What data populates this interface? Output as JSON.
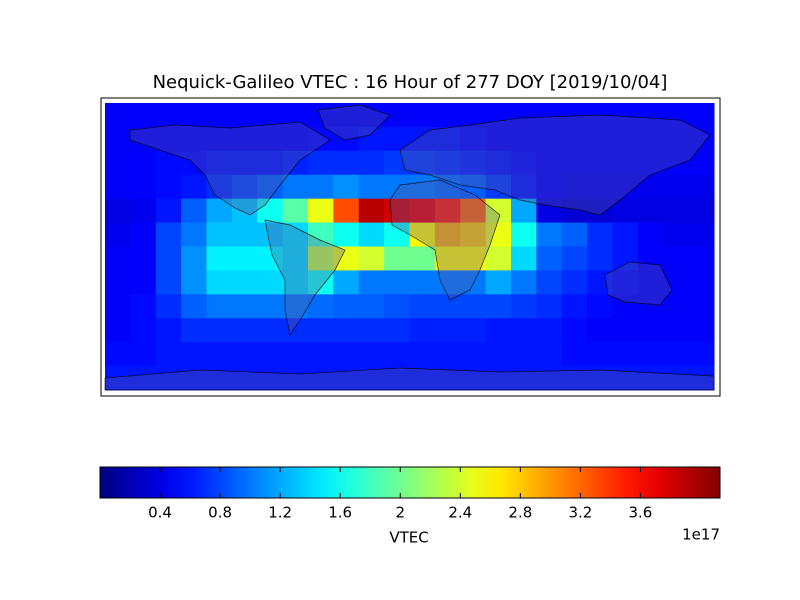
{
  "chart_data": {
    "type": "heatmap",
    "title": "Nequick-Galileo VTEC : 16 Hour of 277 DOY [2019/10/04]",
    "colorbar_label": "VTEC",
    "colorbar_offset": "1e17",
    "colormap": "jet",
    "clim": [
      0,
      4.13
    ],
    "cticks": [
      0.4,
      0.8,
      1.2,
      1.6,
      2.0,
      2.4,
      2.8,
      3.2,
      3.6
    ],
    "z": [
      [
        0.5,
        0.5,
        0.5,
        0.5,
        0.5,
        0.5,
        0.5,
        0.5,
        0.5,
        0.5,
        0.5,
        0.5,
        0.5,
        0.5,
        0.5,
        0.5,
        0.5,
        0.5,
        0.5,
        0.5,
        0.5,
        0.5,
        0.5,
        0.5
      ],
      [
        0.5,
        0.5,
        0.5,
        0.5,
        0.5,
        0.5,
        0.5,
        0.5,
        0.55,
        0.55,
        0.6,
        0.6,
        0.6,
        0.6,
        0.55,
        0.5,
        0.5,
        0.5,
        0.5,
        0.5,
        0.5,
        0.5,
        0.5,
        0.5
      ],
      [
        0.5,
        0.5,
        0.55,
        0.55,
        0.6,
        0.6,
        0.6,
        0.65,
        0.7,
        0.7,
        0.7,
        0.75,
        0.75,
        0.7,
        0.65,
        0.6,
        0.55,
        0.5,
        0.5,
        0.5,
        0.5,
        0.5,
        0.5,
        0.5
      ],
      [
        0.5,
        0.5,
        0.55,
        0.6,
        0.7,
        0.8,
        0.9,
        1.0,
        1.0,
        1.1,
        1.0,
        1.0,
        1.0,
        0.95,
        0.9,
        0.75,
        0.6,
        0.5,
        0.45,
        0.45,
        0.45,
        0.45,
        0.45,
        0.45
      ],
      [
        0.4,
        0.45,
        0.6,
        0.9,
        1.2,
        1.3,
        1.6,
        1.9,
        2.5,
        3.3,
        3.9,
        3.8,
        3.7,
        3.5,
        3.2,
        2.4,
        1.2,
        0.4,
        0.35,
        0.35,
        0.4,
        0.4,
        0.4,
        0.4
      ],
      [
        0.45,
        0.5,
        0.8,
        1.0,
        1.3,
        1.3,
        1.3,
        1.4,
        1.8,
        1.6,
        1.4,
        1.6,
        2.6,
        2.9,
        2.8,
        2.5,
        1.6,
        1.0,
        0.9,
        0.7,
        0.6,
        0.5,
        0.45,
        0.45
      ],
      [
        0.5,
        0.5,
        0.8,
        1.1,
        1.5,
        1.5,
        1.5,
        1.4,
        2.3,
        2.5,
        2.4,
        2.0,
        2.0,
        2.6,
        2.6,
        2.4,
        1.4,
        0.9,
        0.8,
        0.7,
        0.6,
        0.5,
        0.5,
        0.5
      ],
      [
        0.5,
        0.5,
        0.8,
        1.1,
        1.4,
        1.4,
        1.4,
        1.4,
        1.6,
        1.2,
        1.0,
        1.0,
        1.0,
        1.0,
        1.0,
        1.2,
        1.0,
        0.8,
        0.7,
        0.6,
        0.55,
        0.5,
        0.5,
        0.5
      ],
      [
        0.5,
        0.55,
        0.7,
        0.9,
        1.0,
        1.0,
        1.0,
        1.0,
        0.95,
        0.9,
        0.9,
        0.85,
        0.8,
        0.8,
        0.8,
        0.8,
        0.75,
        0.7,
        0.6,
        0.55,
        0.5,
        0.5,
        0.5,
        0.5
      ],
      [
        0.5,
        0.55,
        0.6,
        0.7,
        0.7,
        0.7,
        0.7,
        0.7,
        0.7,
        0.7,
        0.7,
        0.7,
        0.65,
        0.65,
        0.65,
        0.6,
        0.6,
        0.6,
        0.55,
        0.5,
        0.5,
        0.5,
        0.5,
        0.5
      ],
      [
        0.55,
        0.55,
        0.6,
        0.6,
        0.6,
        0.6,
        0.6,
        0.6,
        0.6,
        0.6,
        0.6,
        0.6,
        0.6,
        0.6,
        0.6,
        0.6,
        0.6,
        0.6,
        0.55,
        0.55,
        0.55,
        0.55,
        0.55,
        0.55
      ],
      [
        0.6,
        0.6,
        0.6,
        0.6,
        0.6,
        0.6,
        0.6,
        0.6,
        0.6,
        0.6,
        0.6,
        0.6,
        0.6,
        0.6,
        0.6,
        0.6,
        0.6,
        0.6,
        0.6,
        0.6,
        0.6,
        0.6,
        0.6,
        0.6
      ]
    ]
  }
}
